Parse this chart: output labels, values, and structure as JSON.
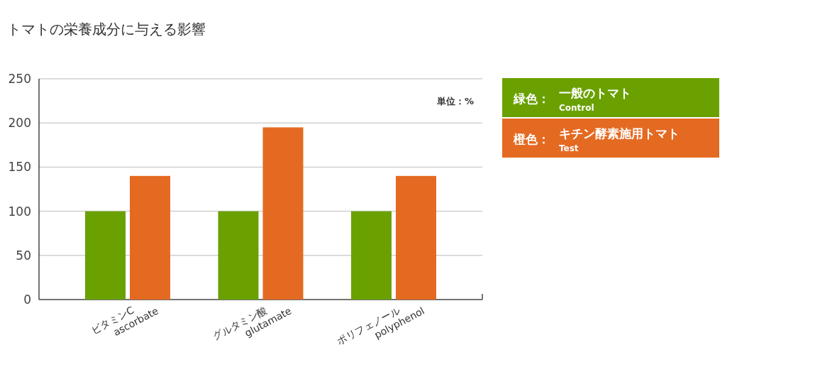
{
  "chart_data": {
    "type": "bar",
    "title": "トマトの栄養成分に与える影響",
    "categories": [
      "ビタミンC\nascorbate",
      "グルタミン酸\nglutamate",
      "ポリフェノール\npolyphenol"
    ],
    "series": [
      {
        "name": "緑色：一般のトマト\nControl",
        "color": "#6aa100",
        "values": [
          100,
          100,
          100
        ]
      },
      {
        "name": "橙色：キチン酵素施用トマト\nTest",
        "color": "#e46a22",
        "values": [
          140,
          195,
          140
        ]
      }
    ],
    "ylim": [
      0,
      250
    ],
    "yticks": [
      0,
      50,
      100,
      150,
      200,
      250
    ],
    "grid": "y",
    "legend": "right",
    "annotations": [
      "単位：%"
    ]
  }
}
